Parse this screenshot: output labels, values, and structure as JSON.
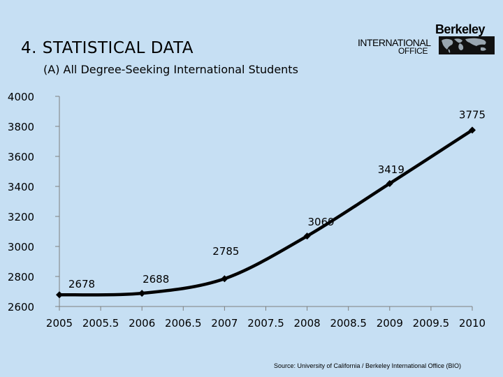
{
  "slide": {
    "title": "4. STATISTICAL DATA",
    "logo": {
      "name": "Berkeley",
      "line1": "INTERNATIONAL",
      "line2": "OFFICE"
    },
    "source": "Source: University of California / Berkeley International Office (BIO)"
  },
  "chart_data": {
    "type": "line",
    "title": "(A) All Degree-Seeking International Students",
    "xlabel": "",
    "ylabel": "",
    "x": [
      2005,
      2006,
      2007,
      2008,
      2009,
      2010
    ],
    "series": [
      {
        "values": [
          2678,
          2688,
          2785,
          3069,
          3419,
          3775
        ]
      }
    ],
    "data_labels": [
      "2678",
      "2688",
      "2785",
      "3069",
      "3419",
      "3775"
    ],
    "xlim": [
      2005,
      2010
    ],
    "ylim": [
      2600,
      4000
    ],
    "x_ticks": [
      2005,
      2005.5,
      2006,
      2006.5,
      2007,
      2007.5,
      2008,
      2008.5,
      2009,
      2009.5,
      2010
    ],
    "y_ticks": [
      2600,
      2800,
      3000,
      3200,
      3400,
      3600,
      3800,
      4000
    ],
    "grid": false,
    "legend": "none",
    "line_color": "#000000",
    "marker": "diamond"
  }
}
